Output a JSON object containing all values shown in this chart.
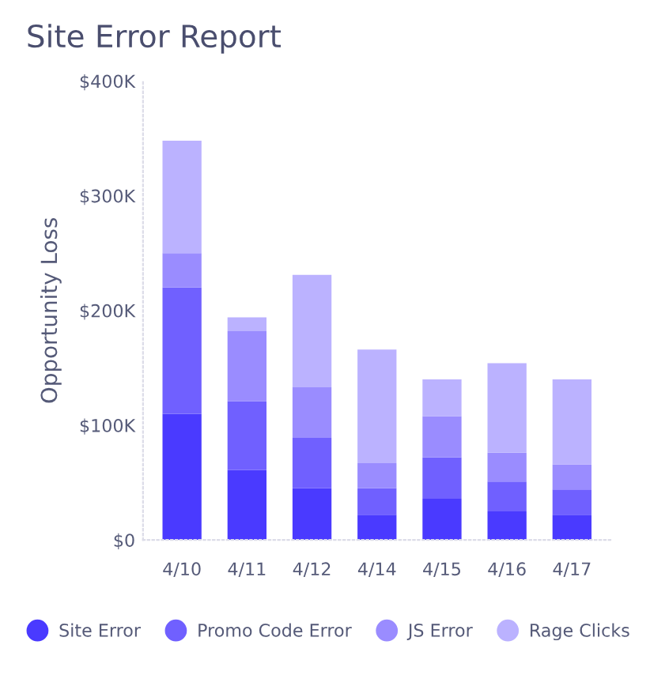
{
  "chart_data": {
    "type": "bar",
    "title": "Site Error Report",
    "ylabel": "Opportunity Loss",
    "stacked": true,
    "legend": "bottom",
    "grid": false,
    "categories": [
      "4/10",
      "4/11",
      "4/12",
      "4/14",
      "4/15",
      "4/16",
      "4/17"
    ],
    "ylim": [
      0,
      400
    ],
    "yticks": [
      {
        "value": 0,
        "label": "$0"
      },
      {
        "value": 100,
        "label": "$100K"
      },
      {
        "value": 200,
        "label": "$200K"
      },
      {
        "value": 300,
        "label": "$300K"
      },
      {
        "value": 400,
        "label": "$400K"
      }
    ],
    "series": [
      {
        "name": "Site Error",
        "color": "#4a3aff",
        "values": [
          110,
          61,
          45,
          22,
          36,
          25,
          22
        ]
      },
      {
        "name": "Promo Code Error",
        "color": "#7060ff",
        "values": [
          110,
          60,
          44,
          23,
          36,
          26,
          22
        ]
      },
      {
        "name": "JS Error",
        "color": "#9a8cff",
        "values": [
          30,
          61,
          44,
          22,
          36,
          25,
          22
        ]
      },
      {
        "name": "Rage Clicks",
        "color": "#bbb2ff",
        "values": [
          98,
          12,
          98,
          99,
          32,
          78,
          74
        ]
      }
    ]
  }
}
